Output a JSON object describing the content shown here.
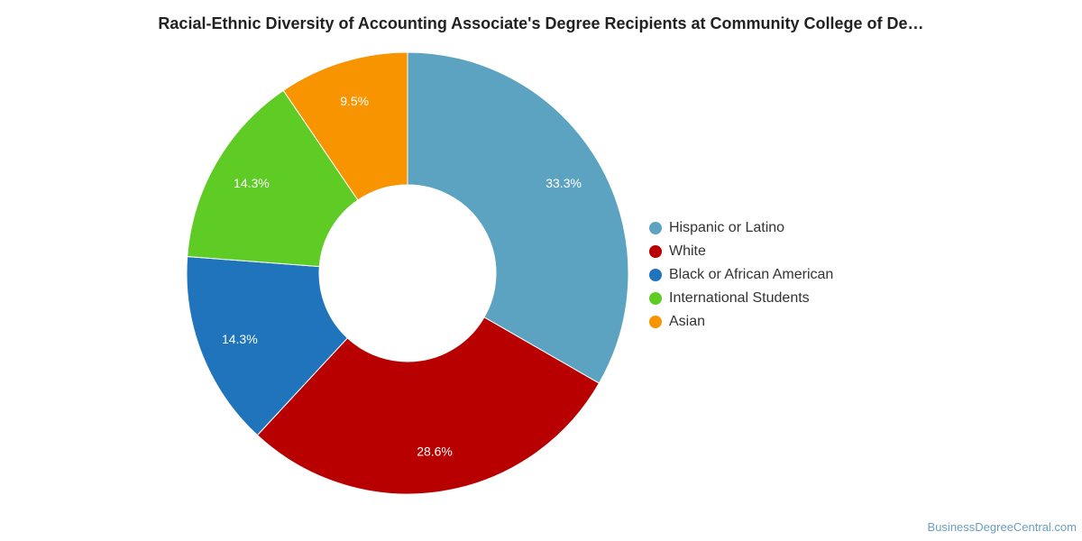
{
  "chart_data": {
    "type": "pie",
    "title": "Racial-Ethnic Diversity of Accounting Associate's Degree Recipients at Community College of De…",
    "categories": [
      "Hispanic or Latino",
      "White",
      "Black or African American",
      "International Students",
      "Asian"
    ],
    "values": [
      33.3,
      28.6,
      14.3,
      14.3,
      9.5
    ],
    "value_labels": [
      "33.3%",
      "28.6%",
      "14.3%",
      "14.3%",
      "9.5%"
    ],
    "colors": [
      "#5ba3c0",
      "#b80000",
      "#1f74bc",
      "#5fcc25",
      "#f79400"
    ],
    "legend_position": "right",
    "donut": true
  },
  "credit": "BusinessDegreeCentral.com"
}
